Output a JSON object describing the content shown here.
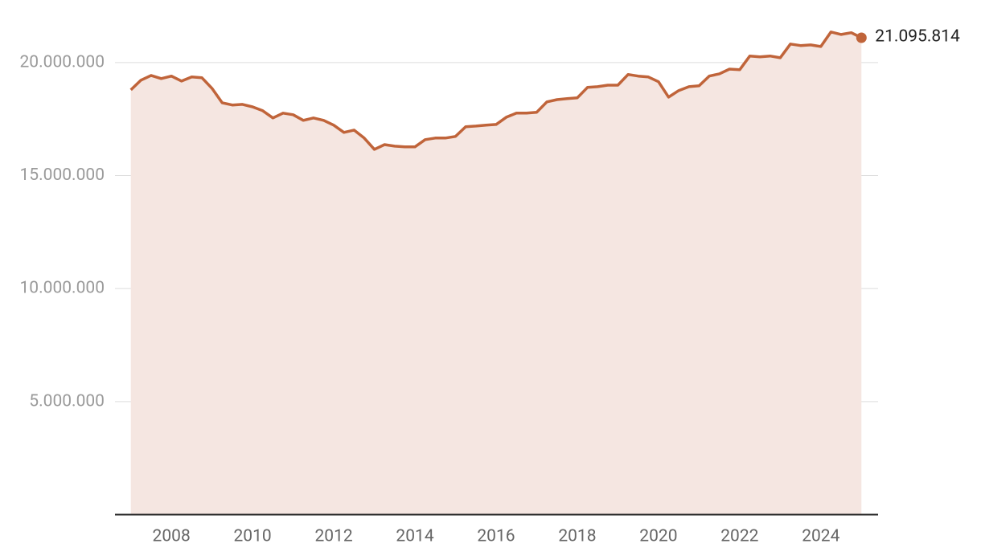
{
  "chart_data": {
    "type": "area",
    "x": [
      2007,
      2007.25,
      2007.5,
      2007.75,
      2008,
      2008.25,
      2008.5,
      2008.75,
      2009,
      2009.25,
      2009.5,
      2009.75,
      2010,
      2010.25,
      2010.5,
      2010.75,
      2011,
      2011.25,
      2011.5,
      2011.75,
      2012,
      2012.25,
      2012.5,
      2012.75,
      2013,
      2013.25,
      2013.5,
      2013.75,
      2014,
      2014.25,
      2014.5,
      2014.75,
      2015,
      2015.25,
      2015.5,
      2015.75,
      2016,
      2016.25,
      2016.5,
      2016.75,
      2017,
      2017.25,
      2017.5,
      2017.75,
      2018,
      2018.25,
      2018.5,
      2018.75,
      2019,
      2019.25,
      2019.5,
      2019.75,
      2020,
      2020.25,
      2020.5,
      2020.75,
      2021,
      2021.25,
      2021.5,
      2021.75,
      2022,
      2022.25,
      2022.5,
      2022.75,
      2023,
      2023.25,
      2023.5,
      2023.75,
      2024,
      2024.25,
      2024.5,
      2024.75,
      2025
    ],
    "values": [
      18790000,
      19220000,
      19430000,
      19290000,
      19400000,
      19180000,
      19360000,
      19330000,
      18860000,
      18220000,
      18120000,
      18150000,
      18040000,
      17870000,
      17550000,
      17760000,
      17690000,
      17440000,
      17550000,
      17440000,
      17230000,
      16910000,
      17010000,
      16660000,
      16160000,
      16370000,
      16300000,
      16270000,
      16270000,
      16590000,
      16660000,
      16660000,
      16730000,
      17160000,
      17190000,
      17230000,
      17260000,
      17580000,
      17760000,
      17760000,
      17800000,
      18260000,
      18360000,
      18400000,
      18440000,
      18900000,
      18930000,
      19000000,
      19000000,
      19470000,
      19400000,
      19360000,
      19150000,
      18470000,
      18760000,
      18930000,
      18970000,
      19400000,
      19500000,
      19710000,
      19680000,
      20290000,
      20250000,
      20290000,
      20210000,
      20820000,
      20750000,
      20780000,
      20710000,
      21350000,
      21240000,
      21320000,
      21095814
    ],
    "value_labels": [
      null,
      null,
      null,
      null,
      null,
      null,
      null,
      null,
      null,
      null,
      null,
      null,
      null,
      null,
      null,
      null,
      null,
      null,
      null,
      null,
      null,
      null,
      null,
      null,
      null,
      null,
      null,
      null,
      null,
      null,
      null,
      null,
      null,
      null,
      null,
      null,
      null,
      null,
      null,
      null,
      null,
      null,
      null,
      null,
      null,
      null,
      null,
      null,
      null,
      null,
      null,
      null,
      null,
      null,
      null,
      null,
      null,
      null,
      null,
      null,
      null,
      null,
      null,
      null,
      null,
      null,
      null,
      null,
      null,
      null,
      null,
      null,
      "21.095.814"
    ],
    "color": "#c0643a",
    "fill_color": "#f5e6e1",
    "xlim": [
      2006.61,
      2025.41
    ],
    "xticks": [
      2008,
      2010,
      2012,
      2014,
      2016,
      2018,
      2020,
      2022,
      2024
    ],
    "ylim": [
      0,
      21700000
    ],
    "yticks": [
      {
        "value": 5000000,
        "label": "5.000.000"
      },
      {
        "value": 10000000,
        "label": "10.000.000"
      },
      {
        "value": 15000000,
        "label": "15.000.000"
      },
      {
        "value": 20000000,
        "label": "20.000.000"
      }
    ],
    "grid": true
  }
}
